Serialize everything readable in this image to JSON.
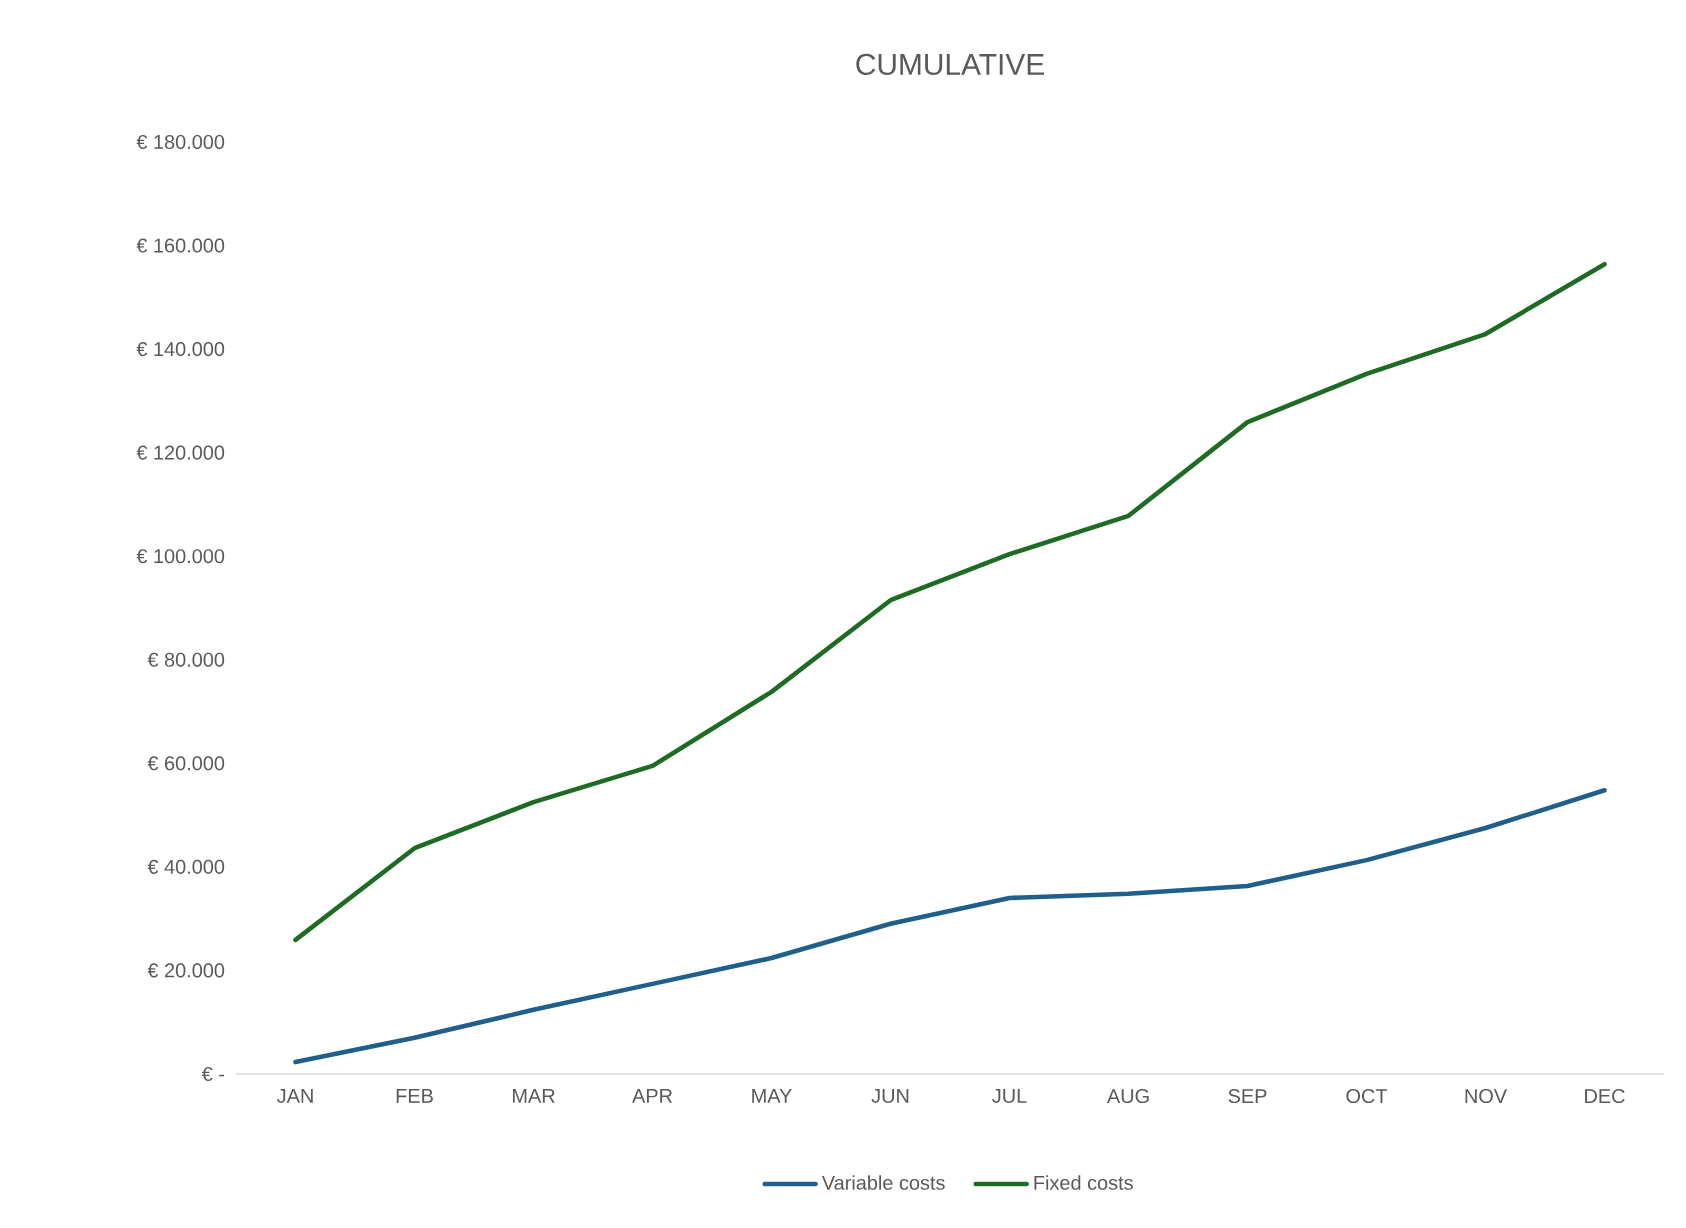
{
  "chart_data": {
    "type": "line",
    "title": "CUMULATIVE",
    "categories": [
      "JAN",
      "FEB",
      "MAR",
      "APR",
      "MAY",
      "JUN",
      "JUL",
      "AUG",
      "SEP",
      "OCT",
      "NOV",
      "DEC"
    ],
    "series": [
      {
        "name": "Variable costs",
        "color": "#1f5f8b",
        "values": [
          2300,
          7000,
          12400,
          17400,
          22400,
          29000,
          34000,
          34800,
          36300,
          41300,
          47500,
          54800
        ]
      },
      {
        "name": "Fixed costs",
        "color": "#1e6b23",
        "values": [
          25900,
          43600,
          52500,
          59500,
          73800,
          91500,
          100400,
          107800,
          125900,
          135200,
          142900,
          156400
        ]
      }
    ],
    "ylim": [
      0,
      180000
    ],
    "yticks": [
      {
        "value": 0,
        "label": "€ -"
      },
      {
        "value": 20000,
        "label": "€ 20.000"
      },
      {
        "value": 40000,
        "label": "€ 40.000"
      },
      {
        "value": 60000,
        "label": "€ 60.000"
      },
      {
        "value": 80000,
        "label": "€ 80.000"
      },
      {
        "value": 100000,
        "label": "€ 100.000"
      },
      {
        "value": 120000,
        "label": "€ 120.000"
      },
      {
        "value": 140000,
        "label": "€ 140.000"
      },
      {
        "value": 160000,
        "label": "€ 160.000"
      },
      {
        "value": 180000,
        "label": "€ 180.000"
      }
    ],
    "legend": "bottom"
  }
}
